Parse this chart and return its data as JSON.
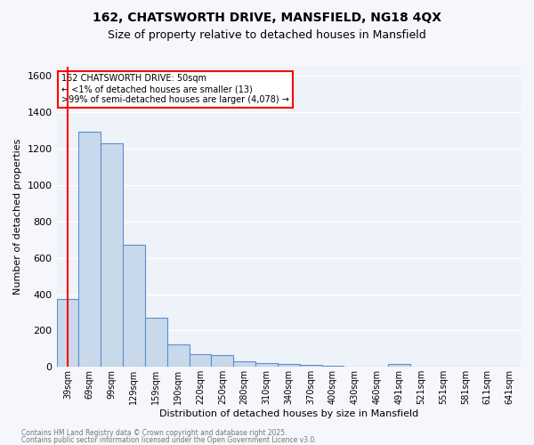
{
  "title1": "162, CHATSWORTH DRIVE, MANSFIELD, NG18 4QX",
  "title2": "Size of property relative to detached houses in Mansfield",
  "xlabel": "Distribution of detached houses by size in Mansfield",
  "ylabel": "Number of detached properties",
  "categories": [
    "39sqm",
    "69sqm",
    "99sqm",
    "129sqm",
    "159sqm",
    "190sqm",
    "220sqm",
    "250sqm",
    "280sqm",
    "310sqm",
    "340sqm",
    "370sqm",
    "400sqm",
    "430sqm",
    "460sqm",
    "491sqm",
    "521sqm",
    "551sqm",
    "581sqm",
    "611sqm",
    "641sqm"
  ],
  "values": [
    375,
    1295,
    1230,
    670,
    270,
    125,
    70,
    65,
    30,
    20,
    15,
    10,
    5,
    0,
    0,
    18,
    0,
    0,
    0,
    0,
    0
  ],
  "bar_color": "#c9d9ec",
  "bar_edge_color": "#5b8fc9",
  "annotation_title": "162 CHATSWORTH DRIVE: 50sqm",
  "annotation_line1": "← <1% of detached houses are smaller (13)",
  "annotation_line2": ">99% of semi-detached houses are larger (4,078) →",
  "footer1": "Contains HM Land Registry data © Crown copyright and database right 2025.",
  "footer2": "Contains public sector information licensed under the Open Government Licence v3.0.",
  "ylim": [
    0,
    1650
  ],
  "background_color": "#eef2f9",
  "grid_color": "#ffffff",
  "fig_bg": "#f5f7fc"
}
